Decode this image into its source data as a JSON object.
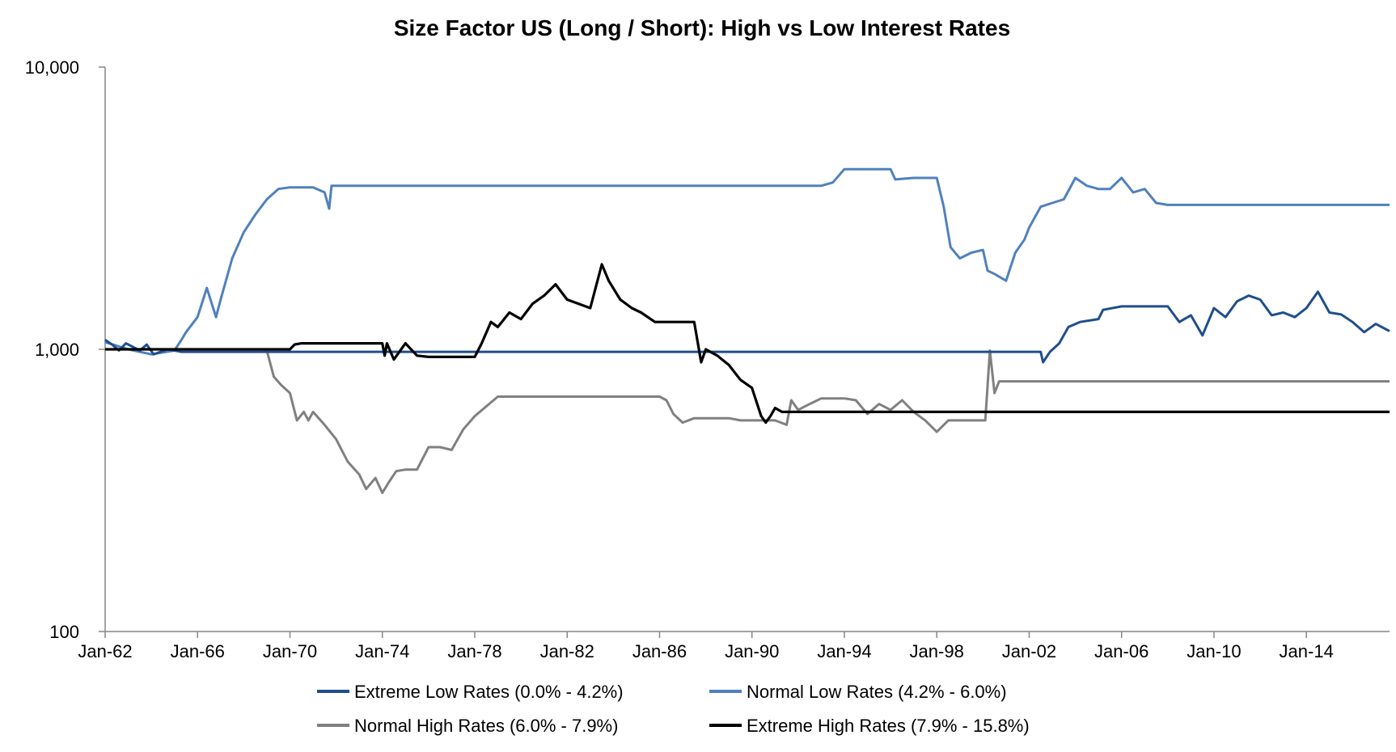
{
  "chart_data": {
    "type": "line",
    "title": "Size Factor US (Long / Short): High vs Low Interest Rates",
    "xlabel": "",
    "ylabel": "",
    "y_scale": "log",
    "ylim": [
      100,
      10000
    ],
    "y_ticks": [
      {
        "value": 100,
        "label": "100"
      },
      {
        "value": 1000,
        "label": "1,000"
      },
      {
        "value": 10000,
        "label": "10,000"
      }
    ],
    "xlim": [
      1962.0,
      2017.6
    ],
    "x_ticks": [
      {
        "value": 1962,
        "label": "Jan-62"
      },
      {
        "value": 1966,
        "label": "Jan-66"
      },
      {
        "value": 1970,
        "label": "Jan-70"
      },
      {
        "value": 1974,
        "label": "Jan-74"
      },
      {
        "value": 1978,
        "label": "Jan-78"
      },
      {
        "value": 1982,
        "label": "Jan-82"
      },
      {
        "value": 1986,
        "label": "Jan-86"
      },
      {
        "value": 1990,
        "label": "Jan-90"
      },
      {
        "value": 1994,
        "label": "Jan-94"
      },
      {
        "value": 1998,
        "label": "Jan-98"
      },
      {
        "value": 2002,
        "label": "Jan-02"
      },
      {
        "value": 2006,
        "label": "Jan-06"
      },
      {
        "value": 2010,
        "label": "Jan-10"
      },
      {
        "value": 2014,
        "label": "Jan-14"
      }
    ],
    "grid": false,
    "legend_position": "bottom",
    "series": [
      {
        "name": "Extreme Low Rates (0.0% - 4.2%)",
        "color": "#1f4e8c",
        "x": [
          1962.0,
          1962.3,
          1962.6,
          1962.9,
          1963.2,
          1963.5,
          1963.8,
          1964.1,
          1964.4,
          1964.7,
          1965.0,
          1965.3,
          2002.5,
          2002.6,
          2002.9,
          2003.3,
          2003.7,
          2004.2,
          2005.0,
          2005.2,
          2006.0,
          2007.0,
          2008.0,
          2008.5,
          2009.0,
          2009.5,
          2010.0,
          2010.5,
          2011.0,
          2011.5,
          2012.0,
          2012.5,
          2013.0,
          2013.5,
          2014.0,
          2014.5,
          2015.0,
          2015.5,
          2016.0,
          2016.5,
          2017.0,
          2017.6
        ],
        "y": [
          1080,
          1040,
          990,
          1050,
          1020,
          990,
          1040,
          960,
          980,
          1000,
          990,
          980,
          980,
          900,
          980,
          1050,
          1200,
          1250,
          1280,
          1380,
          1420,
          1420,
          1420,
          1250,
          1320,
          1120,
          1400,
          1300,
          1480,
          1550,
          1500,
          1320,
          1350,
          1300,
          1400,
          1600,
          1350,
          1330,
          1250,
          1150,
          1230,
          1160
        ]
      },
      {
        "name": "Normal Low Rates (4.2% - 6.0%)",
        "color": "#4f81bd",
        "x": [
          1962.0,
          1963.0,
          1964.0,
          1965.0,
          1965.3,
          1965.5,
          1966.0,
          1966.4,
          1966.8,
          1967.0,
          1967.5,
          1968.0,
          1968.5,
          1969.0,
          1969.5,
          1970.0,
          1971.0,
          1971.5,
          1971.7,
          1971.8,
          1972.0,
          1980.0,
          1990.0,
          1992.0,
          1993.0,
          1993.5,
          1994.0,
          1995.0,
          1996.0,
          1996.2,
          1997.0,
          1998.0,
          1998.3,
          1998.6,
          1999.0,
          1999.5,
          2000.0,
          2000.2,
          2000.5,
          2001.0,
          2001.4,
          2001.8,
          2002.0,
          2002.5,
          2003.0,
          2003.5,
          2004.0,
          2004.5,
          2005.0,
          2005.5,
          2006.0,
          2006.5,
          2007.0,
          2007.5,
          2008.0,
          2010.0,
          2015.0,
          2017.6
        ],
        "y": [
          1060,
          1000,
          960,
          990,
          1080,
          1150,
          1300,
          1650,
          1300,
          1500,
          2100,
          2600,
          3000,
          3400,
          3700,
          3750,
          3750,
          3600,
          3150,
          3800,
          3800,
          3800,
          3800,
          3800,
          3800,
          3900,
          4350,
          4350,
          4350,
          4000,
          4050,
          4050,
          3200,
          2300,
          2100,
          2200,
          2250,
          1900,
          1850,
          1750,
          2200,
          2450,
          2700,
          3200,
          3300,
          3400,
          4050,
          3800,
          3700,
          3700,
          4050,
          3600,
          3700,
          3300,
          3250,
          3250,
          3250,
          3250
        ]
      },
      {
        "name": "Normal High Rates (6.0% - 7.9%)",
        "color": "#808080",
        "x": [
          1962.0,
          1967.0,
          1968.9,
          1969.0,
          1969.3,
          1969.6,
          1970.0,
          1970.3,
          1970.6,
          1970.8,
          1971.0,
          1971.5,
          1972.0,
          1972.5,
          1973.0,
          1973.3,
          1973.7,
          1974.0,
          1974.3,
          1974.6,
          1975.0,
          1975.5,
          1976.0,
          1976.5,
          1977.0,
          1977.5,
          1978.0,
          1979.0,
          1980.0,
          1982.0,
          1986.0,
          1986.3,
          1986.6,
          1987.0,
          1987.5,
          1988.0,
          1989.0,
          1989.5,
          1990.0,
          1991.0,
          1991.5,
          1991.7,
          1992.0,
          1992.5,
          1993.0,
          1994.0,
          1994.5,
          1995.0,
          1995.5,
          1996.0,
          1996.5,
          1997.0,
          1997.5,
          1998.0,
          1998.5,
          1999.0,
          1999.5,
          2000.0,
          2000.1,
          2000.3,
          2000.5,
          2000.7,
          2001.0,
          2005.0,
          2010.0,
          2017.6
        ],
        "y": [
          1000,
          1000,
          1000,
          990,
          800,
          750,
          700,
          560,
          600,
          560,
          600,
          540,
          480,
          400,
          360,
          320,
          350,
          310,
          340,
          370,
          375,
          375,
          450,
          450,
          440,
          520,
          580,
          680,
          680,
          680,
          680,
          660,
          590,
          550,
          570,
          570,
          570,
          560,
          560,
          560,
          540,
          660,
          610,
          640,
          670,
          670,
          660,
          590,
          640,
          610,
          660,
          600,
          560,
          510,
          560,
          560,
          560,
          560,
          560,
          990,
          700,
          770,
          770,
          770,
          770,
          770
        ]
      },
      {
        "name": "Extreme High Rates (7.9% - 15.8%)",
        "color": "#000000",
        "x": [
          1962.0,
          1969.0,
          1970.0,
          1970.2,
          1970.5,
          1971.0,
          1974.0,
          1974.1,
          1974.2,
          1974.5,
          1975.0,
          1975.5,
          1976.0,
          1977.0,
          1978.0,
          1978.3,
          1978.7,
          1979.0,
          1979.5,
          1980.0,
          1980.5,
          1981.0,
          1981.5,
          1982.0,
          1982.5,
          1983.0,
          1983.5,
          1983.8,
          1984.3,
          1984.8,
          1985.2,
          1985.8,
          1986.5,
          1987.0,
          1987.5,
          1987.8,
          1988.0,
          1988.5,
          1989.0,
          1989.5,
          1990.0,
          1990.4,
          1990.6,
          1990.8,
          1991.0,
          1991.3,
          1991.6,
          2000.0,
          2017.6
        ],
        "y": [
          1000,
          1000,
          1000,
          1040,
          1050,
          1050,
          1050,
          950,
          1050,
          920,
          1050,
          950,
          940,
          940,
          940,
          1050,
          1250,
          1200,
          1350,
          1280,
          1450,
          1550,
          1700,
          1500,
          1450,
          1400,
          2000,
          1750,
          1500,
          1400,
          1350,
          1250,
          1250,
          1250,
          1250,
          900,
          1000,
          950,
          880,
          780,
          730,
          580,
          550,
          580,
          620,
          600,
          600,
          600,
          600
        ]
      }
    ]
  }
}
